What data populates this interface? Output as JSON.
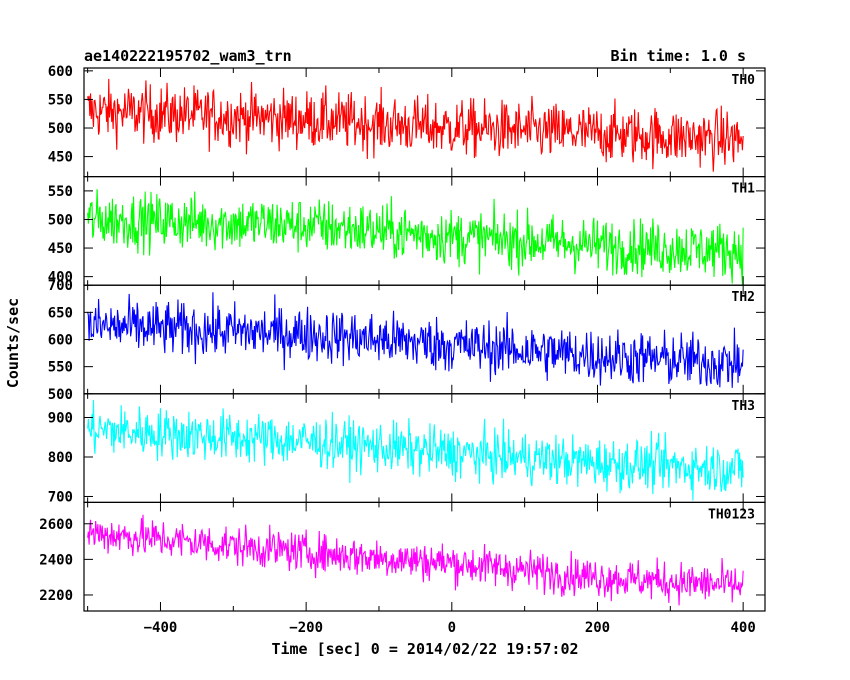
{
  "header": {
    "title": "ae140222195702_wam3_trn",
    "bin_time": "Bin time: 1.0 s"
  },
  "chart_data": {
    "type": "line",
    "xlabel": "Time [sec] 0 = 2014/02/22 19:57:02",
    "ylabel": "Counts/sec",
    "xlim": [
      -505,
      430
    ],
    "x_ticks": [
      -400,
      -200,
      0,
      200,
      400
    ],
    "x_tick_labels": [
      "−400",
      "−200",
      "0",
      "200",
      "400"
    ],
    "panels": [
      {
        "name": "TH0",
        "color": "#ff0000",
        "ylim": [
          415,
          605
        ],
        "y_ticks": [
          450,
          500,
          550,
          600
        ],
        "trend": {
          "x": [
            -500,
            -200,
            0,
            200,
            400
          ],
          "y": [
            530,
            515,
            500,
            490,
            480
          ]
        },
        "noise_sd": 25
      },
      {
        "name": "TH1",
        "color": "#00ff00",
        "ylim": [
          385,
          575
        ],
        "y_ticks": [
          400,
          450,
          500,
          550
        ],
        "trend": {
          "x": [
            -500,
            -200,
            0,
            200,
            400
          ],
          "y": [
            500,
            490,
            470,
            455,
            445
          ]
        },
        "noise_sd": 24
      },
      {
        "name": "TH2",
        "color": "#0000ff",
        "ylim": [
          500,
          700
        ],
        "y_ticks": [
          500,
          550,
          600,
          650,
          700
        ],
        "trend": {
          "x": [
            -500,
            -200,
            0,
            200,
            400
          ],
          "y": [
            625,
            610,
            590,
            570,
            555
          ]
        },
        "noise_sd": 25
      },
      {
        "name": "TH3",
        "color": "#00ffff",
        "ylim": [
          685,
          960
        ],
        "y_ticks": [
          700,
          800,
          900
        ],
        "trend": {
          "x": [
            -500,
            -200,
            0,
            200,
            400
          ],
          "y": [
            870,
            840,
            810,
            785,
            770
          ]
        },
        "noise_sd": 32
      },
      {
        "name": "TH0123",
        "color": "#ff00ff",
        "ylim": [
          2110,
          2720
        ],
        "y_ticks": [
          2200,
          2400,
          2600
        ],
        "trend": {
          "x": [
            -500,
            -200,
            0,
            200,
            400
          ],
          "y": [
            2550,
            2440,
            2380,
            2300,
            2250
          ]
        },
        "noise_sd": 55
      }
    ]
  }
}
